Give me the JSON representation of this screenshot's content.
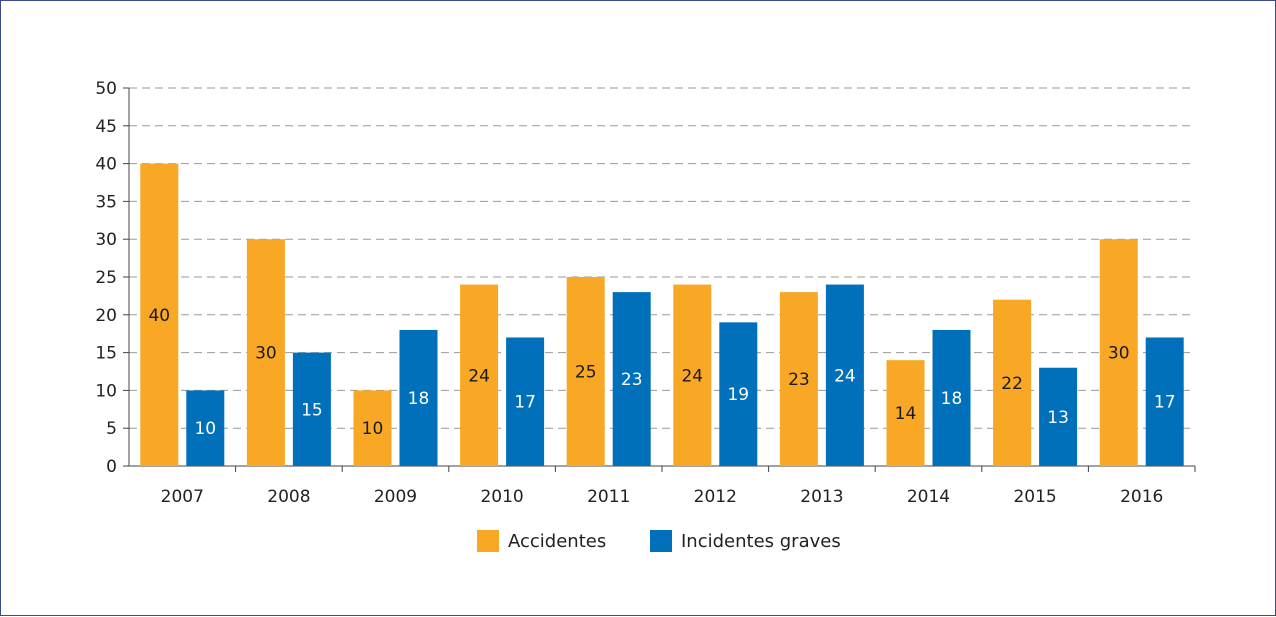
{
  "chart_data": {
    "type": "bar",
    "title": "",
    "xlabel": "",
    "ylabel": "",
    "categories": [
      "2007",
      "2008",
      "2009",
      "2010",
      "2011",
      "2012",
      "2013",
      "2014",
      "2015",
      "2016"
    ],
    "series": [
      {
        "name": "Accidentes",
        "color": "#F9A825",
        "values": [
          40,
          30,
          10,
          24,
          25,
          24,
          23,
          14,
          22,
          30
        ]
      },
      {
        "name": "Incidentes graves",
        "color": "#0070BA",
        "values": [
          10,
          15,
          18,
          17,
          23,
          19,
          24,
          18,
          13,
          17
        ]
      }
    ],
    "ylim": [
      0,
      50
    ],
    "yticks": [
      0,
      5,
      10,
      15,
      20,
      25,
      30,
      35,
      40,
      45,
      50
    ],
    "grid": true,
    "grid_style": "dashed",
    "legend_position": "bottom-center",
    "data_labels": true
  }
}
